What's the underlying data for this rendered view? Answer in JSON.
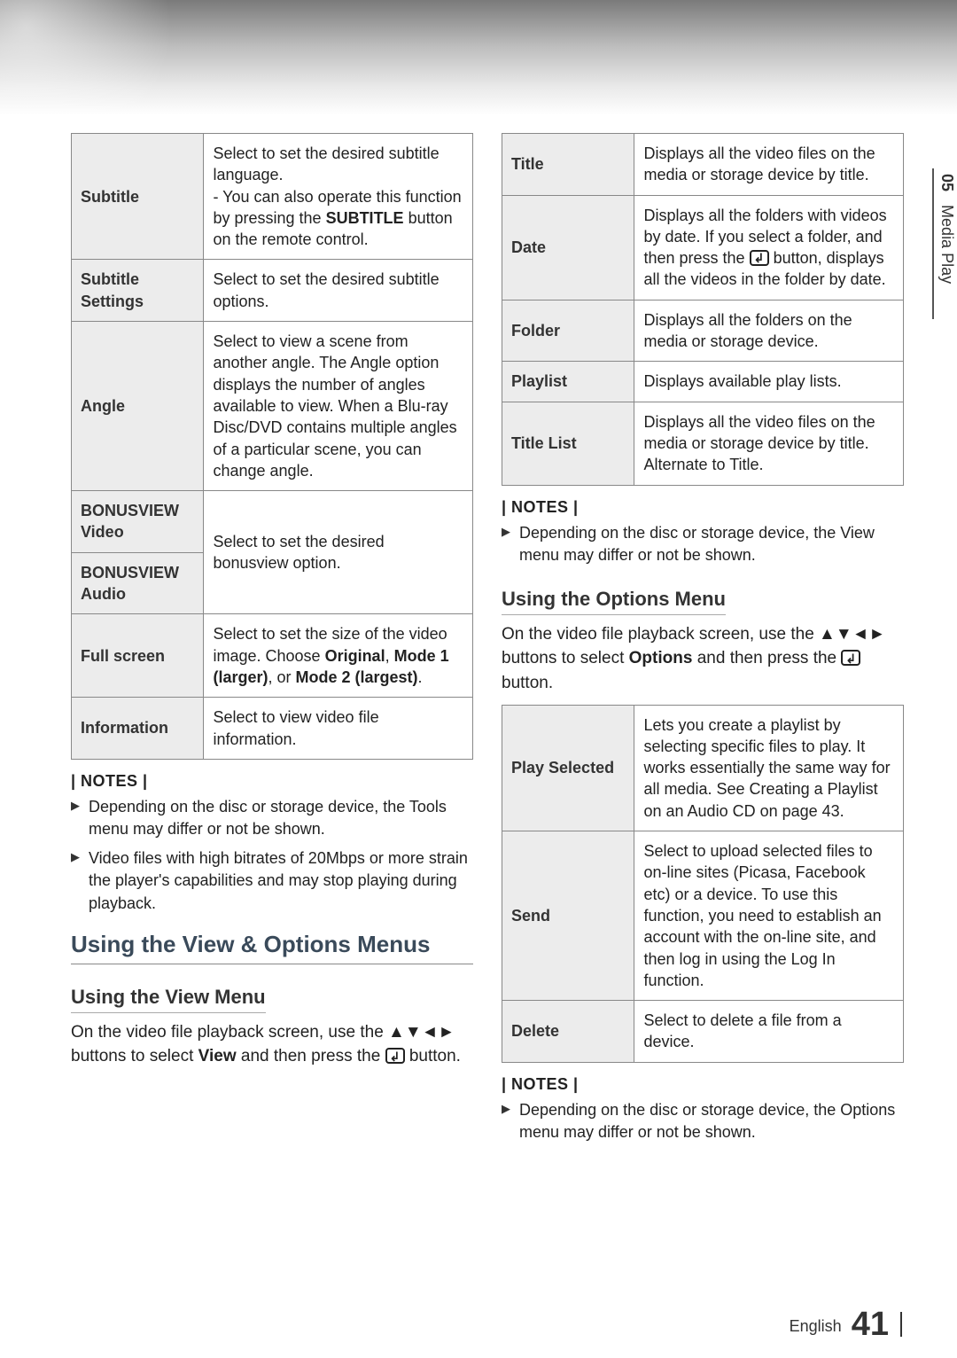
{
  "sideTab": {
    "num": "05",
    "label": "Media Play"
  },
  "leftTable": [
    {
      "h": "Subtitle",
      "d": [
        "Select to set the desired subtitle language.",
        "-  You can also operate this function by pressing the <b>SUBTITLE</b> button on the remote control."
      ]
    },
    {
      "h": "Subtitle Settings",
      "d": [
        "Select to set the desired subtitle options."
      ]
    },
    {
      "h": "Angle",
      "d": [
        "Select to view a scene from another angle. The Angle option displays the number of angles available to view. When a Blu-ray Disc/DVD contains multiple angles of a particular scene, you can change angle."
      ]
    },
    {
      "h": "BONUSVIEW Video",
      "d": [
        "__SPAN_TOP__Select to set the desired bonusview option."
      ]
    },
    {
      "h": "BONUSVIEW Audio",
      "d": [
        "__SPAN_BOTTOM__"
      ]
    },
    {
      "h": "Full screen",
      "d": [
        "Select to set the size of the video image. Choose <b>Original</b>, <b>Mode 1 (larger)</b>, or <b>Mode 2 (largest)</b>."
      ]
    },
    {
      "h": "Information",
      "d": [
        "Select to view video file information."
      ]
    }
  ],
  "leftNotesHead": "| NOTES |",
  "leftNotes": [
    "Depending on the disc or storage device, the Tools menu may differ or not be shown.",
    "Video files with high bitrates of 20Mbps or more strain the player's capabilities and may stop playing during playback."
  ],
  "leftSection": "Using the View & Options Menus",
  "leftSub": "Using the View Menu",
  "leftBody": "On the video file playback screen, use the ▲▼◄► buttons to select <b>View</b> and then press the {ENTER} button.",
  "rightTable1": [
    {
      "h": "Title",
      "d": "Displays all the video files on the media or storage device by title."
    },
    {
      "h": "Date",
      "d": "Displays all the folders with videos by date. If you select a folder, and then press the {ENTER} button, displays all the videos in the folder by date."
    },
    {
      "h": "Folder",
      "d": "Displays all the folders on the media or storage device."
    },
    {
      "h": "Playlist",
      "d": "Displays available play lists."
    },
    {
      "h": "Title List",
      "d": "Displays all the video files on the media or storage device by title. Alternate to Title."
    }
  ],
  "rightNotesHead1": "| NOTES |",
  "rightNotes1": [
    "Depending on the disc or storage device, the View menu may differ or not be shown."
  ],
  "rightSub": "Using the Options Menu",
  "rightBody": "On the video file playback screen, use the ▲▼◄► buttons to select <b>Options</b> and then press the {ENTER} button.",
  "rightTable2": [
    {
      "h": "Play Selected",
      "d": "Lets you create a playlist by selecting specific files to play. It works essentially the same way for all media. See Creating a Playlist on an Audio CD on page 43."
    },
    {
      "h": "Send",
      "d": "Select to upload selected files to on-line sites (Picasa, Facebook etc) or a device. To use this function, you need to establish an account with the on-line site, and then log in using the Log In function."
    },
    {
      "h": "Delete",
      "d": "Select to delete a file from a device."
    }
  ],
  "rightNotesHead2": "| NOTES |",
  "rightNotes2": [
    "Depending on the disc or storage device, the Options menu may differ or not be shown."
  ],
  "footer": {
    "lang": "English",
    "page": "41"
  }
}
